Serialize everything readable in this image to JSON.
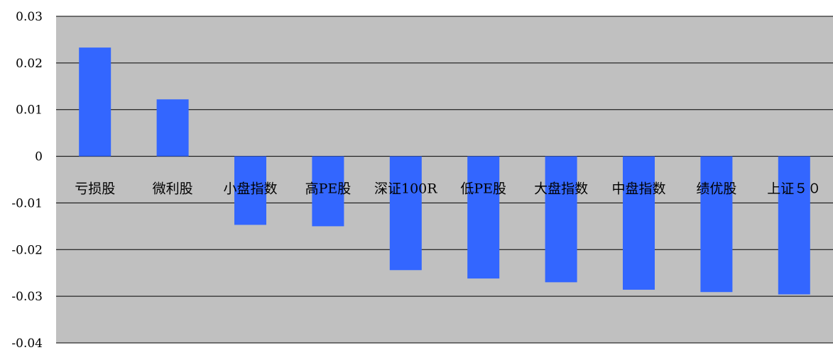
{
  "chart_data": {
    "type": "bar",
    "categories": [
      "亏损股",
      "微利股",
      "小盘指数",
      "高PE股",
      "深证100R",
      "低PE股",
      "大盘指数",
      "中盘指数",
      "绩优股",
      "上证５０"
    ],
    "values": [
      0.0233,
      0.0122,
      -0.0147,
      -0.015,
      -0.0244,
      -0.0262,
      -0.027,
      -0.0286,
      -0.0291,
      -0.0296
    ],
    "ylim": [
      -0.04,
      0.03
    ],
    "yticks": [
      0.03,
      0.02,
      0.01,
      0,
      -0.01,
      -0.02,
      -0.03,
      -0.04
    ],
    "ytick_labels": [
      "0.03",
      "0.02",
      "0.01",
      "0",
      "-0.01",
      "-0.02",
      "-0.03",
      "-0.04"
    ],
    "grid": true,
    "legend": "none",
    "title": "",
    "xlabel": "",
    "ylabel": "",
    "colors": {
      "bar": "#3366ff",
      "plot_background": "#c0c0c0",
      "gridline": "#000000"
    }
  }
}
